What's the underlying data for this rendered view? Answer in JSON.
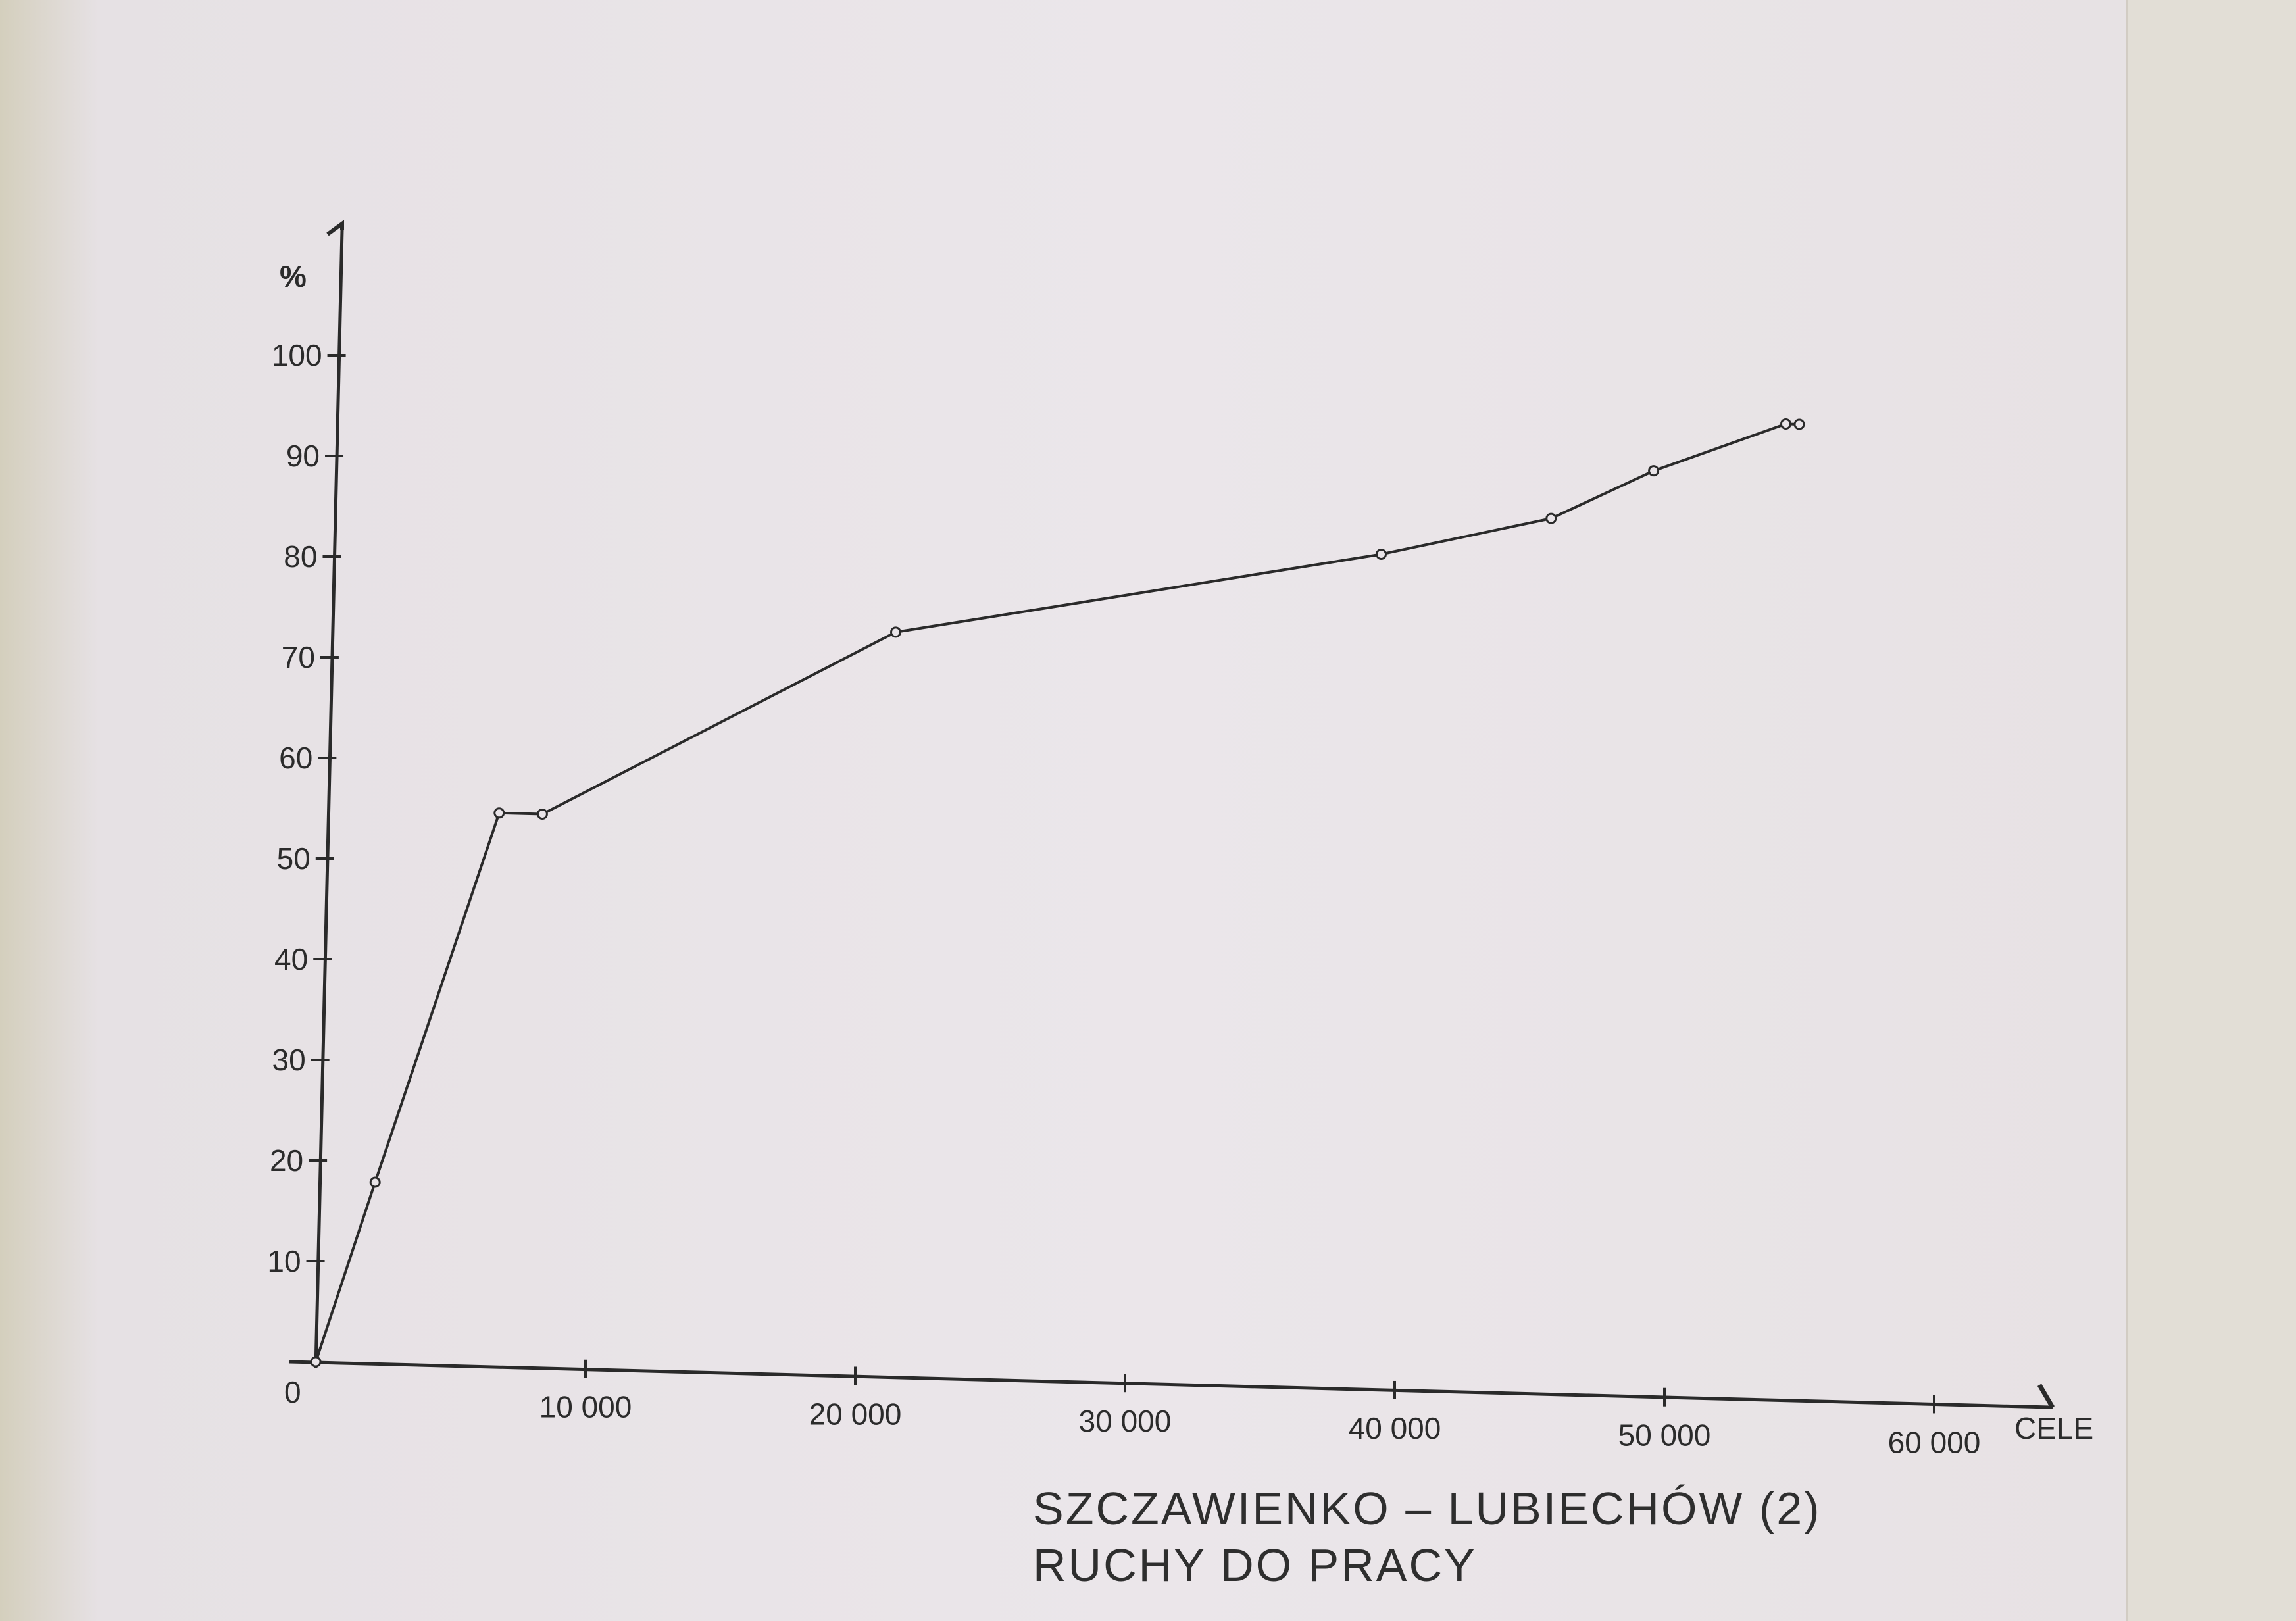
{
  "chart_data": {
    "type": "line",
    "title_lines": [
      "SZCZAWIENKO – LUBIECHÓW (2)",
      "RUCHY DO PRACY"
    ],
    "xlabel": "CELE",
    "ylabel": "%",
    "xlim": [
      0,
      65000
    ],
    "ylim": [
      0,
      100
    ],
    "x_ticks": [
      10000,
      20000,
      30000,
      40000,
      50000,
      60000
    ],
    "x_tick_labels": [
      "10 000",
      "20 000",
      "30 000",
      "40 000",
      "50 000",
      "60 000"
    ],
    "y_ticks": [
      10,
      20,
      30,
      40,
      50,
      60,
      70,
      80,
      90,
      100
    ],
    "y_tick_labels": [
      "10",
      "20",
      "30",
      "40",
      "50",
      "60",
      "70",
      "80",
      "90",
      "100"
    ],
    "origin_label": "0",
    "grid": false,
    "series": [
      {
        "x": [
          0,
          2200,
          6800,
          8400,
          21500,
          39500,
          45800,
          49600,
          54500,
          55000
        ],
        "y": [
          0,
          18,
          55,
          55,
          74,
          83,
          87,
          92,
          97,
          97
        ]
      }
    ]
  }
}
